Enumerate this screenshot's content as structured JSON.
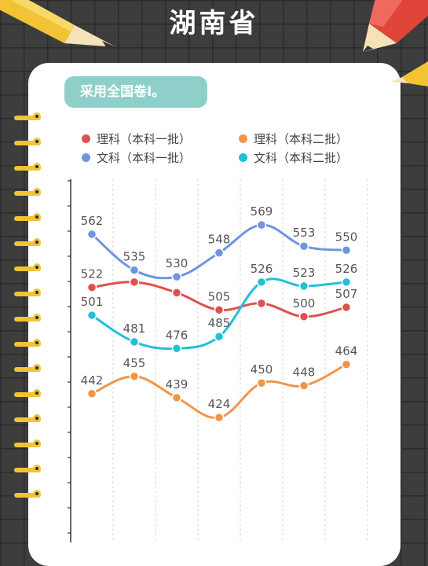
{
  "title": "湖南省",
  "badge": "采用全国卷Ⅰ。",
  "chart_data": {
    "type": "line",
    "title": "",
    "xlabel": "",
    "ylabel": "",
    "categories": [
      "",
      "",
      "",
      "",
      "",
      "",
      ""
    ],
    "ylim": [
      330,
      620
    ],
    "grid": "vertical-dashed",
    "legend_position": "top",
    "series": [
      {
        "name": "理科（本科一批）",
        "color": "#e05050",
        "values": [
          522,
          526,
          518,
          505,
          510,
          500,
          507
        ]
      },
      {
        "name": "理科（本科二批）",
        "color": "#f0954a",
        "values": [
          442,
          455,
          439,
          424,
          450,
          448,
          464
        ]
      },
      {
        "name": "文科（本科一批）",
        "color": "#6f95e0",
        "values": [
          562,
          535,
          530,
          548,
          569,
          553,
          550
        ]
      },
      {
        "name": "文科（本科二批）",
        "color": "#22c0d8",
        "values": [
          501,
          481,
          476,
          485,
          526,
          523,
          526
        ]
      }
    ],
    "data_labels": {
      "理科（本科一批）": [
        "522",
        "",
        "",
        "505",
        "",
        "500",
        "507"
      ],
      "理科（本科二批）": [
        "442",
        "455",
        "439",
        "424",
        "450",
        "448",
        "464"
      ],
      "文科（本科一批）": [
        "562",
        "535",
        "530",
        "548",
        "569",
        "553",
        "550"
      ],
      "文科（本科二批）": [
        "501",
        "481",
        "476",
        "485",
        "526",
        "523",
        "526"
      ]
    }
  }
}
